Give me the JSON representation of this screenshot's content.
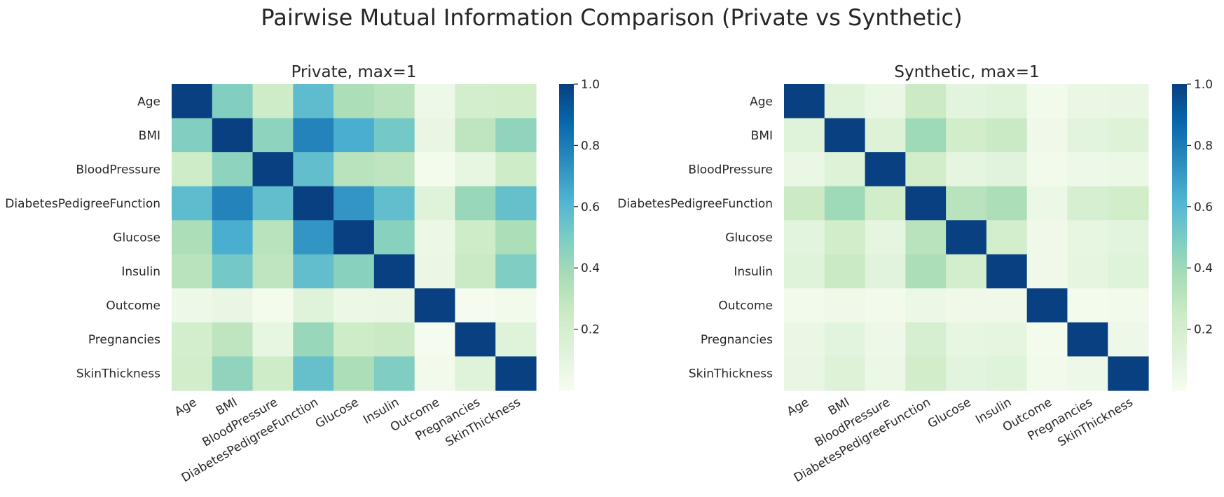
{
  "figure": {
    "title": "Pairwise Mutual Information Comparison (Private vs Synthetic)",
    "colormap": "YlGnBu-like",
    "colorbar_ticks": [
      0.2,
      0.4,
      0.6,
      0.8,
      1.0
    ],
    "colorbar_tick_labels": [
      "0.2",
      "0.4",
      "0.6",
      "0.8",
      "1.0"
    ],
    "colorbar_range": [
      0.0,
      1.0
    ]
  },
  "chart_data": [
    {
      "type": "heatmap",
      "title": "Private, max=1",
      "categories": [
        "Age",
        "BMI",
        "BloodPressure",
        "DiabetesPedigreeFunction",
        "Glucose",
        "Insulin",
        "Outcome",
        "Pregnancies",
        "SkinThickness"
      ],
      "values": [
        [
          1.0,
          0.48,
          0.24,
          0.58,
          0.36,
          0.32,
          0.05,
          0.21,
          0.22
        ],
        [
          0.48,
          1.0,
          0.45,
          0.78,
          0.64,
          0.52,
          0.08,
          0.3,
          0.44
        ],
        [
          0.24,
          0.45,
          1.0,
          0.57,
          0.32,
          0.3,
          0.02,
          0.09,
          0.23
        ],
        [
          0.58,
          0.78,
          0.57,
          1.0,
          0.72,
          0.57,
          0.13,
          0.42,
          0.56
        ],
        [
          0.36,
          0.64,
          0.32,
          0.72,
          1.0,
          0.46,
          0.06,
          0.23,
          0.36
        ],
        [
          0.32,
          0.52,
          0.3,
          0.57,
          0.46,
          1.0,
          0.07,
          0.26,
          0.49
        ],
        [
          0.05,
          0.08,
          0.02,
          0.13,
          0.06,
          0.07,
          1.0,
          0.01,
          0.03
        ],
        [
          0.21,
          0.3,
          0.09,
          0.42,
          0.23,
          0.26,
          0.01,
          1.0,
          0.13
        ],
        [
          0.22,
          0.44,
          0.23,
          0.56,
          0.36,
          0.49,
          0.03,
          0.13,
          1.0
        ]
      ],
      "vmax": 1
    },
    {
      "type": "heatmap",
      "title": "Synthetic, max=1",
      "categories": [
        "Age",
        "BMI",
        "BloodPressure",
        "DiabetesPedigreeFunction",
        "Glucose",
        "Insulin",
        "Outcome",
        "Pregnancies",
        "SkinThickness"
      ],
      "values": [
        [
          1.0,
          0.13,
          0.07,
          0.25,
          0.11,
          0.13,
          0.03,
          0.07,
          0.08
        ],
        [
          0.13,
          1.0,
          0.14,
          0.4,
          0.22,
          0.26,
          0.04,
          0.11,
          0.14
        ],
        [
          0.07,
          0.14,
          1.0,
          0.22,
          0.1,
          0.12,
          0.03,
          0.05,
          0.06
        ],
        [
          0.25,
          0.4,
          0.22,
          1.0,
          0.32,
          0.36,
          0.06,
          0.18,
          0.22
        ],
        [
          0.11,
          0.22,
          0.1,
          0.32,
          1.0,
          0.21,
          0.04,
          0.09,
          0.11
        ],
        [
          0.13,
          0.26,
          0.12,
          0.36,
          0.21,
          1.0,
          0.04,
          0.1,
          0.13
        ],
        [
          0.03,
          0.04,
          0.03,
          0.06,
          0.04,
          0.04,
          1.0,
          0.02,
          0.03
        ],
        [
          0.07,
          0.11,
          0.05,
          0.18,
          0.09,
          0.1,
          0.02,
          1.0,
          0.05
        ],
        [
          0.08,
          0.14,
          0.06,
          0.22,
          0.11,
          0.13,
          0.03,
          0.05,
          1.0
        ]
      ],
      "vmax": 1
    }
  ]
}
